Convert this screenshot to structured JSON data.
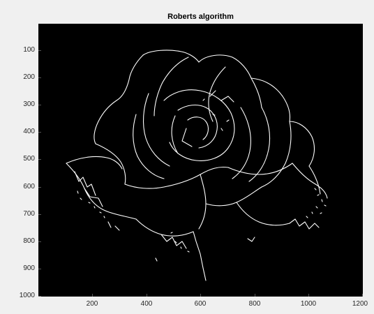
{
  "figure": {
    "title": "Roberts algorithm",
    "background": "#f0f0f0"
  },
  "axes": {
    "x_ticks": [
      "200",
      "400",
      "600",
      "800",
      "1000",
      "1200"
    ],
    "y_ticks": [
      "100",
      "200",
      "300",
      "400",
      "500",
      "600",
      "700",
      "800",
      "900",
      "1000"
    ],
    "x_range": [
      0,
      1200
    ],
    "y_range": [
      0,
      1000
    ],
    "y_reversed": true,
    "image_background": "#000000",
    "edge_color": "#ffffff"
  },
  "image": {
    "description_type": "binary edge-detection image of a rose",
    "subject": "rose-edge-map"
  }
}
